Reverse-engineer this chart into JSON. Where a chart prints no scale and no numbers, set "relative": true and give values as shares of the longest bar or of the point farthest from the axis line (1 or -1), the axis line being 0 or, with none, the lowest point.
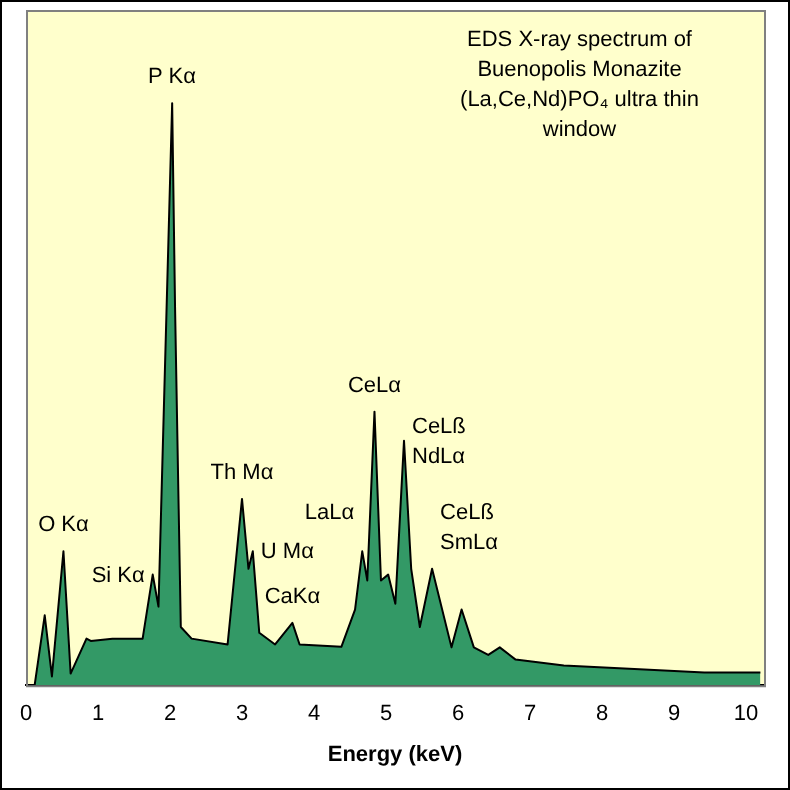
{
  "chart_data": {
    "type": "area",
    "title": "EDS X-ray spectrum of Buenopolis Monazite",
    "subtitle": "(La,Ce,Nd)PO₄ ultra thin window",
    "xlabel": "Energy (keV)",
    "relative": true,
    "x": [
      0.12,
      0.26,
      0.36,
      0.52,
      0.62,
      0.84,
      0.9,
      1.2,
      1.62,
      1.76,
      1.84,
      2.03,
      2.07,
      2.15,
      2.3,
      2.8,
      3.0,
      3.09,
      3.15,
      3.24,
      3.46,
      3.7,
      3.8,
      4.38,
      4.57,
      4.67,
      4.74,
      4.84,
      4.93,
      5.03,
      5.13,
      5.25,
      5.35,
      5.47,
      5.64,
      5.91,
      6.05,
      6.22,
      6.42,
      6.58,
      6.8,
      7.47,
      8.45,
      9.42,
      10.2
    ],
    "values": [
      0,
      0.12,
      0.015,
      0.23,
      0.02,
      0.08,
      0.076,
      0.08,
      0.08,
      0.19,
      0.135,
      1,
      0.65,
      0.1,
      0.08,
      0.07,
      0.32,
      0.2,
      0.23,
      0.09,
      0.07,
      0.107,
      0.07,
      0.066,
      0.13,
      0.23,
      0.18,
      0.47,
      0.18,
      0.19,
      0.14,
      0.42,
      0.2,
      0.1,
      0.2,
      0.065,
      0.13,
      0.065,
      0.052,
      0.065,
      0.044,
      0.034,
      0.028,
      0.022,
      0.022
    ],
    "color": "#339966",
    "xlim": [
      0,
      10.25
    ],
    "xticks": [
      0,
      1,
      2,
      3,
      4,
      5,
      6,
      7,
      8,
      9,
      10
    ],
    "grid": false,
    "legend": false,
    "annotations": [
      {
        "text": "O Kα",
        "x": 0.52,
        "y": 0.23
      },
      {
        "text": "Si Kα",
        "x": 1.76,
        "y": 0.19
      },
      {
        "text": "P Kα",
        "x": 2.03,
        "y": 1
      },
      {
        "text": "Th Mα",
        "x": 3.0,
        "y": 0.32
      },
      {
        "text": "U Mα",
        "x": 3.15,
        "y": 0.23
      },
      {
        "text": "CaKα",
        "x": 3.7,
        "y": 0.107
      },
      {
        "text": "LaLα",
        "x": 4.67,
        "y": 0.23
      },
      {
        "text": "CeLα",
        "x": 4.84,
        "y": 0.47
      },
      {
        "text": "CeLß",
        "x": 5.25,
        "y": 0.42
      },
      {
        "text": "NdLα",
        "x": 5.25,
        "y": 0.42
      },
      {
        "text": "CeLß",
        "x": 5.64,
        "y": 0.2
      },
      {
        "text": "SmLα",
        "x": 5.64,
        "y": 0.2
      }
    ]
  }
}
